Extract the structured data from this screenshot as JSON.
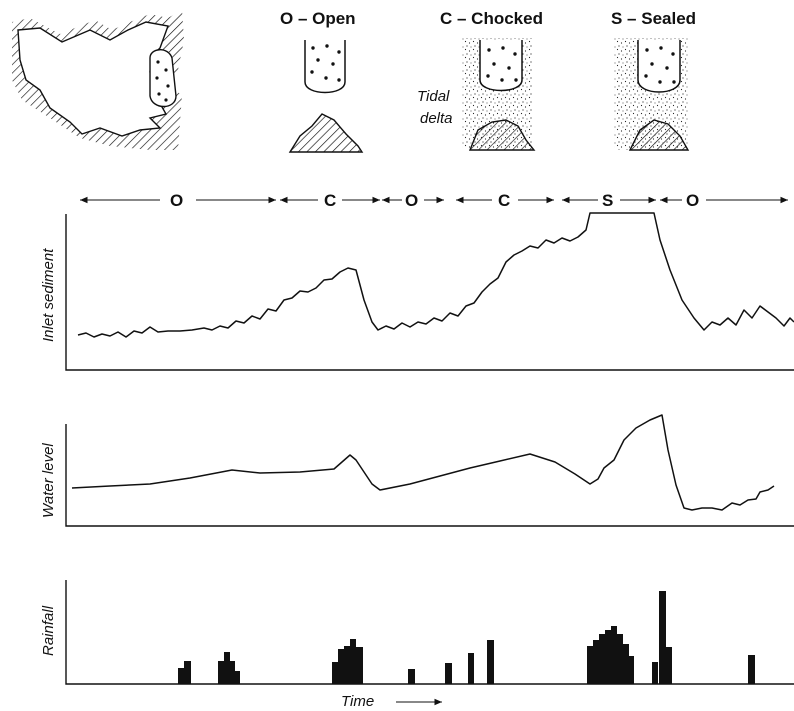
{
  "legend": {
    "open": "O – Open",
    "chocked": "C – Chocked",
    "sealed": "S – Sealed",
    "tidal_delta_line1": "Tidal",
    "tidal_delta_line2": "delta"
  },
  "phases": [
    "O",
    "C",
    "O",
    "C",
    "S",
    "O"
  ],
  "panels": {
    "inlet_sediment_label": "Inlet sediment",
    "water_level_label": "Water level",
    "rainfall_label": "Rainfall",
    "time_label": "Time"
  }
}
